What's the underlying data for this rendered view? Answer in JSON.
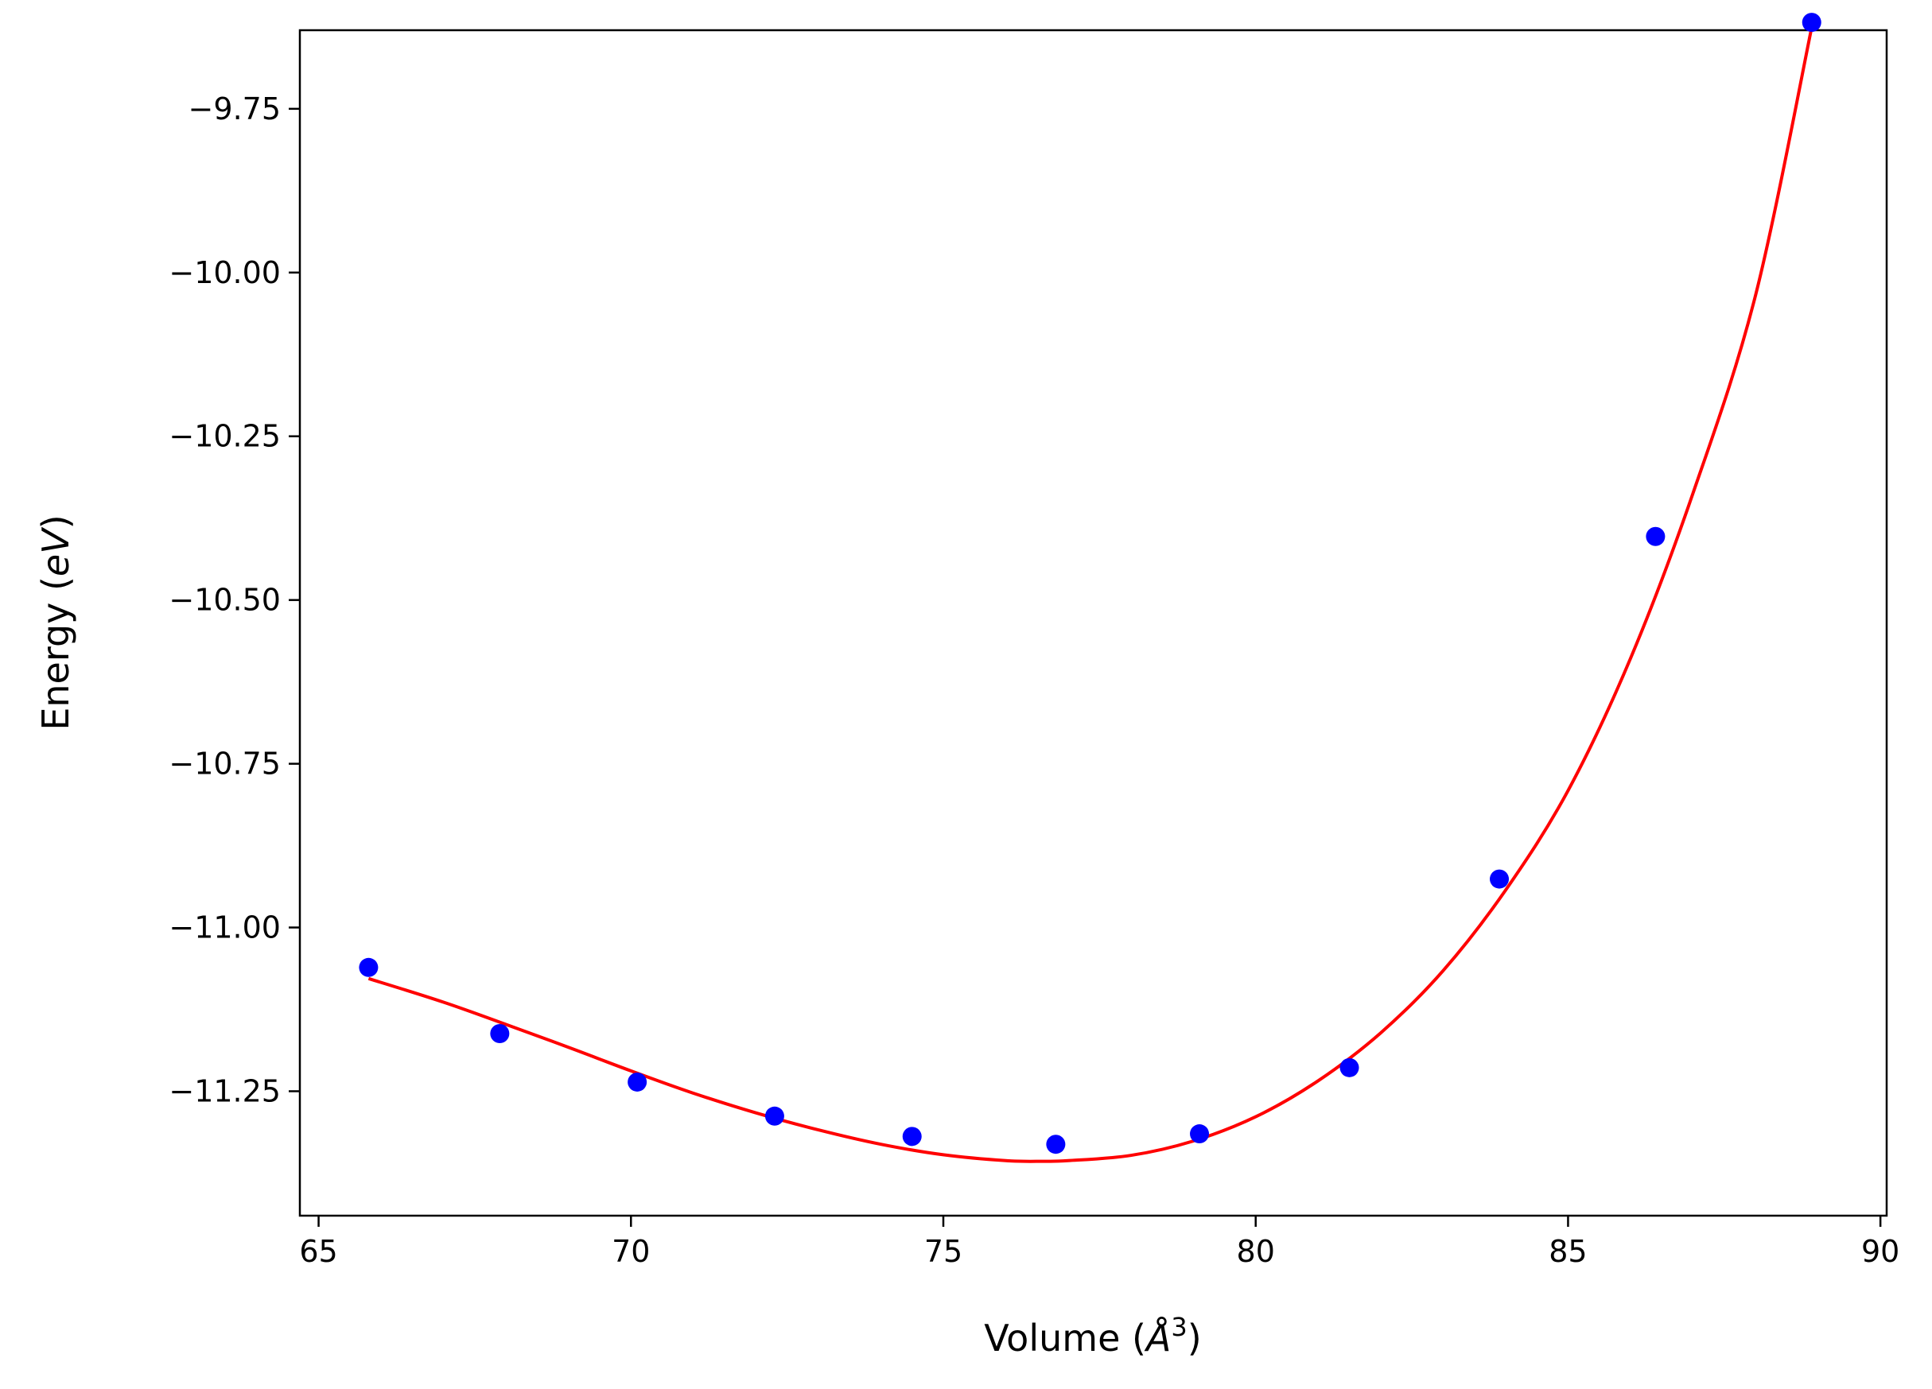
{
  "chart_data": {
    "type": "scatter",
    "title": "",
    "xlabel": {
      "prefix": "Volume (",
      "symbol": "Å",
      "superscript": "3",
      "suffix": ")"
    },
    "ylabel": {
      "prefix": "Energy (",
      "symbol": "eV",
      "suffix": ")"
    },
    "xlim": [
      64.7,
      90.1
    ],
    "ylim": [
      -11.44,
      -9.63
    ],
    "xticks": [
      65,
      70,
      75,
      80,
      85,
      90
    ],
    "xtick_labels": [
      "65",
      "70",
      "75",
      "80",
      "85",
      "90"
    ],
    "yticks": [
      -9.75,
      -10.0,
      -10.25,
      -10.5,
      -10.75,
      -11.0,
      -11.25
    ],
    "ytick_labels": [
      "−9.75",
      "−10.00",
      "−10.25",
      "−10.50",
      "−10.75",
      "−11.00",
      "−11.25"
    ],
    "grid": false,
    "series": [
      {
        "kind": "points",
        "color": "#0000ff",
        "x": [
          65.8,
          67.9,
          70.1,
          72.3,
          74.5,
          76.8,
          79.1,
          81.5,
          83.9,
          86.4,
          88.9
        ],
        "y": [
          -11.061,
          -11.162,
          -11.236,
          -11.288,
          -11.319,
          -11.331,
          -11.315,
          -11.214,
          -10.926,
          -10.403,
          -9.618
        ]
      },
      {
        "kind": "fit-curve",
        "color": "#ff0000",
        "x": [
          65.8,
          67.0,
          68.0,
          69.0,
          70.0,
          71.0,
          72.0,
          73.0,
          74.0,
          75.0,
          76.0,
          76.6,
          77.0,
          78.0,
          79.0,
          80.0,
          81.0,
          82.0,
          83.0,
          84.0,
          85.0,
          86.0,
          87.0,
          88.0,
          88.9
        ],
        "y": [
          -11.078,
          -11.114,
          -11.148,
          -11.183,
          -11.219,
          -11.253,
          -11.283,
          -11.309,
          -11.331,
          -11.347,
          -11.356,
          -11.357,
          -11.356,
          -11.348,
          -11.326,
          -11.289,
          -11.234,
          -11.161,
          -11.066,
          -10.943,
          -10.791,
          -10.589,
          -10.337,
          -10.035,
          -9.626
        ]
      }
    ]
  }
}
